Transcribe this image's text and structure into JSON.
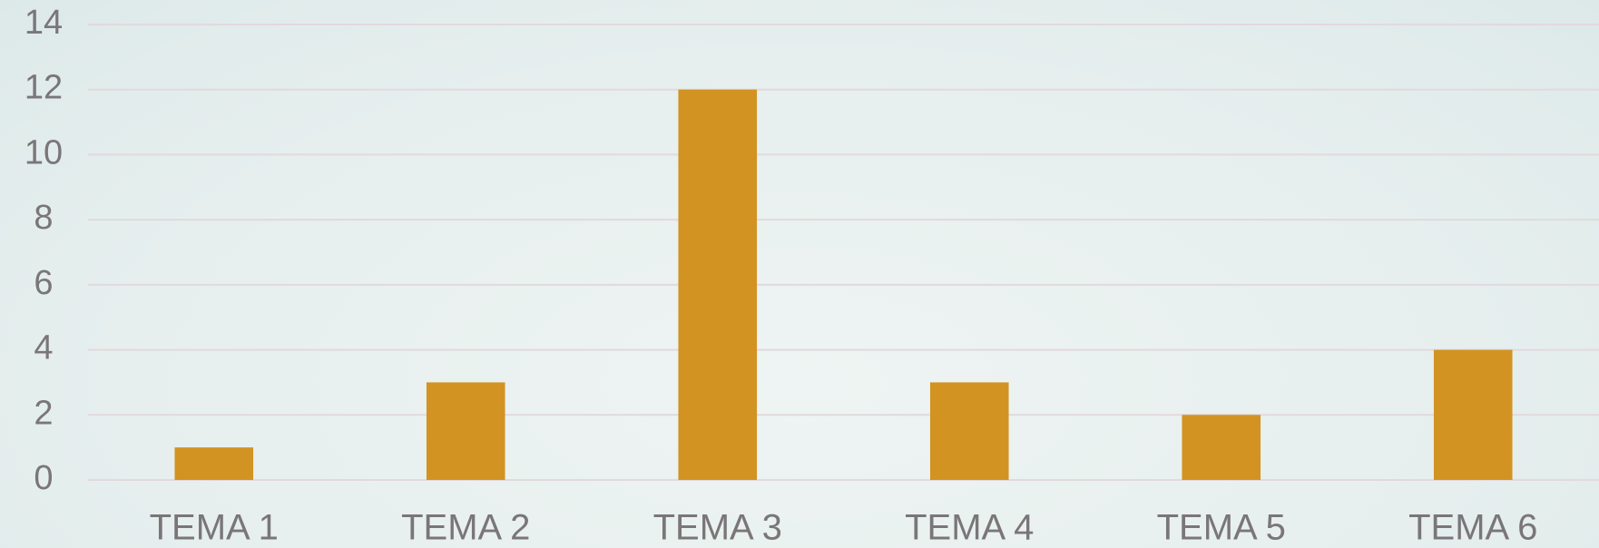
{
  "chart_data": {
    "type": "bar",
    "categories": [
      "TEMA 1",
      "TEMA 2",
      "TEMA 3",
      "TEMA 4",
      "TEMA 5",
      "TEMA 6"
    ],
    "values": [
      1,
      3,
      12,
      3,
      2,
      4
    ],
    "color": "#d29322",
    "ylim": [
      0,
      14
    ],
    "yticks": [
      0,
      2,
      4,
      6,
      8,
      10,
      12,
      14
    ],
    "grid": true
  }
}
